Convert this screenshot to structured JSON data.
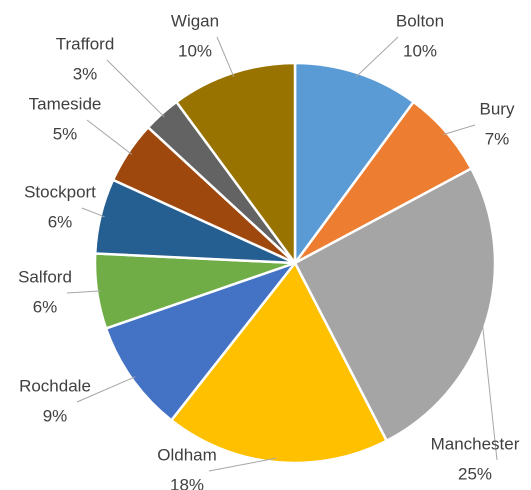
{
  "chart_data": {
    "type": "pie",
    "categories": [
      "Bolton",
      "Bury",
      "Manchester",
      "Oldham",
      "Rochdale",
      "Salford",
      "Stockport",
      "Tameside",
      "Trafford",
      "Wigan"
    ],
    "values": [
      10,
      7,
      25,
      18,
      9,
      6,
      6,
      5,
      3,
      10
    ],
    "value_labels": [
      "10%",
      "7%",
      "25%",
      "18%",
      "9%",
      "6%",
      "6%",
      "5%",
      "3%",
      "10%"
    ],
    "colors": [
      "#5b9bd5",
      "#ed7d31",
      "#a5a5a5",
      "#ffc000",
      "#4472c4",
      "#70ad47",
      "#255e91",
      "#9e480e",
      "#636363",
      "#997300"
    ]
  }
}
